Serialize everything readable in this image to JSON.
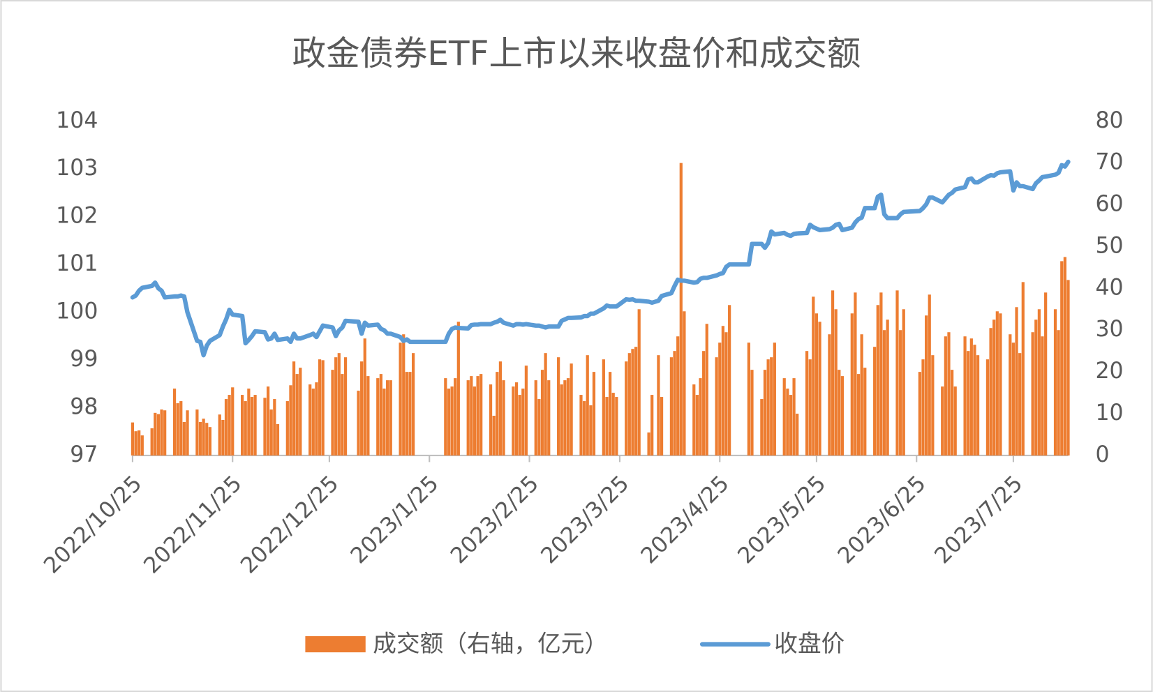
{
  "chart_data": {
    "type": "bar-line",
    "title": "政金债券ETF上市以来收盘价和成交额",
    "x": [
      "2022/10/25",
      "2022/10/26",
      "2022/10/27",
      "2022/10/28",
      "2022/10/31",
      "2022/11/1",
      "2022/11/2",
      "2022/11/3",
      "2022/11/4",
      "2022/11/7",
      "2022/11/8",
      "2022/11/9",
      "2022/11/10",
      "2022/11/11",
      "2022/11/14",
      "2022/11/15",
      "2022/11/16",
      "2022/11/17",
      "2022/11/18",
      "2022/11/21",
      "2022/11/22",
      "2022/11/23",
      "2022/11/24",
      "2022/11/25",
      "2022/11/28",
      "2022/11/29",
      "2022/11/30",
      "2022/12/1",
      "2022/12/2",
      "2022/12/5",
      "2022/12/6",
      "2022/12/7",
      "2022/12/8",
      "2022/12/9",
      "2022/12/12",
      "2022/12/13",
      "2022/12/14",
      "2022/12/15",
      "2022/12/16",
      "2022/12/19",
      "2022/12/20",
      "2022/12/21",
      "2022/12/22",
      "2022/12/23",
      "2022/12/26",
      "2022/12/27",
      "2022/12/28",
      "2022/12/29",
      "2022/12/30",
      "2023/1/3",
      "2023/1/4",
      "2023/1/5",
      "2023/1/6",
      "2023/1/9",
      "2023/1/10",
      "2023/1/11",
      "2023/1/12",
      "2023/1/13",
      "2023/1/16",
      "2023/1/17",
      "2023/1/18",
      "2023/1/19",
      "2023/1/20",
      "2023/1/30",
      "2023/1/31",
      "2023/2/1",
      "2023/2/2",
      "2023/2/3",
      "2023/2/6",
      "2023/2/7",
      "2023/2/8",
      "2023/2/9",
      "2023/2/10",
      "2023/2/13",
      "2023/2/14",
      "2023/2/15",
      "2023/2/16",
      "2023/2/17",
      "2023/2/20",
      "2023/2/21",
      "2023/2/22",
      "2023/2/23",
      "2023/2/24",
      "2023/2/27",
      "2023/2/28",
      "2023/3/1",
      "2023/3/2",
      "2023/3/3",
      "2023/3/6",
      "2023/3/7",
      "2023/3/8",
      "2023/3/9",
      "2023/3/10",
      "2023/3/13",
      "2023/3/14",
      "2023/3/15",
      "2023/3/16",
      "2023/3/17",
      "2023/3/20",
      "2023/3/21",
      "2023/3/22",
      "2023/3/23",
      "2023/3/24",
      "2023/3/27",
      "2023/3/28",
      "2023/3/29",
      "2023/3/30",
      "2023/3/31",
      "2023/4/3",
      "2023/4/4",
      "2023/4/6",
      "2023/4/7",
      "2023/4/10",
      "2023/4/11",
      "2023/4/12",
      "2023/4/13",
      "2023/4/14",
      "2023/4/17",
      "2023/4/18",
      "2023/4/19",
      "2023/4/20",
      "2023/4/21",
      "2023/4/24",
      "2023/4/25",
      "2023/4/26",
      "2023/4/27",
      "2023/4/28",
      "2023/5/4",
      "2023/5/5",
      "2023/5/8",
      "2023/5/9",
      "2023/5/10",
      "2023/5/11",
      "2023/5/12",
      "2023/5/15",
      "2023/5/16",
      "2023/5/17",
      "2023/5/18",
      "2023/5/19",
      "2023/5/22",
      "2023/5/23",
      "2023/5/24",
      "2023/5/25",
      "2023/5/26",
      "2023/5/29",
      "2023/5/30",
      "2023/5/31",
      "2023/6/1",
      "2023/6/2",
      "2023/6/5",
      "2023/6/6",
      "2023/6/7",
      "2023/6/8",
      "2023/6/9",
      "2023/6/12",
      "2023/6/13",
      "2023/6/14",
      "2023/6/15",
      "2023/6/16",
      "2023/6/19",
      "2023/6/20",
      "2023/6/21",
      "2023/6/26",
      "2023/6/27",
      "2023/6/28",
      "2023/6/29",
      "2023/6/30",
      "2023/7/3",
      "2023/7/4",
      "2023/7/5",
      "2023/7/6",
      "2023/7/7",
      "2023/7/10",
      "2023/7/11",
      "2023/7/12",
      "2023/7/13",
      "2023/7/14",
      "2023/7/17",
      "2023/7/18",
      "2023/7/19",
      "2023/7/20",
      "2023/7/21",
      "2023/7/24",
      "2023/7/25",
      "2023/7/26",
      "2023/7/27",
      "2023/7/28",
      "2023/7/31",
      "2023/8/1",
      "2023/8/2",
      "2023/8/3",
      "2023/8/4",
      "2023/8/7",
      "2023/8/8",
      "2023/8/9",
      "2023/8/10",
      "2023/8/11"
    ],
    "series": [
      {
        "name": "成交额（右轴，亿元）",
        "type": "bar",
        "axis": "y2",
        "color": "#ED7D31",
        "values": [
          7.9,
          5.8,
          6.0,
          4.8,
          6.5,
          10.2,
          9.9,
          11.0,
          10.8,
          16.0,
          12.5,
          13.0,
          8.0,
          10.8,
          11.0,
          8.0,
          8.8,
          7.8,
          6.8,
          9.8,
          8.5,
          13.5,
          14.5,
          16.3,
          14.5,
          13.0,
          16.0,
          14.0,
          14.5,
          13.8,
          16.5,
          11.0,
          13.5,
          7.5,
          13.0,
          16.8,
          22.5,
          19.5,
          21.0,
          17.0,
          16.0,
          17.5,
          23.0,
          22.8,
          20.5,
          23.5,
          24.5,
          19.5,
          23.5,
          15.5,
          22.5,
          28.0,
          19.0,
          18.5,
          19.5,
          16.0,
          18.0,
          18.0,
          27.0,
          29.0,
          20.0,
          20.0,
          24.5,
          18.5,
          16.0,
          16.5,
          18.5,
          32.0,
          18.0,
          19.0,
          16.5,
          19.0,
          19.5,
          17.0,
          9.5,
          20.0,
          22.5,
          18.0,
          16.5,
          17.5,
          14.5,
          16.0,
          21.5,
          18.0,
          13.5,
          20.5,
          24.5,
          18.0,
          23.5,
          17.0,
          18.0,
          18.5,
          22.0,
          14.5,
          13.0,
          24.0,
          12.0,
          20.0,
          23.0,
          14.0,
          20.0,
          15.0,
          14.0,
          22.5,
          24.5,
          25.5,
          26.0,
          35.0,
          5.5,
          14.5,
          24.0,
          14.0,
          23.5,
          25.0,
          28.5,
          70.0,
          34.5,
          17.0,
          14.5,
          18.5,
          25.0,
          31.5,
          23.5,
          27.0,
          31.0,
          29.5,
          36.0,
          27.0,
          20.5,
          13.5,
          20.5,
          23.0,
          23.5,
          27.0,
          18.5,
          16.0,
          14.5,
          18.5,
          10.0,
          25.0,
          23.0,
          38.0,
          34.0,
          32.0,
          29.0,
          39.5,
          35.0,
          20.5,
          19.0,
          34.0,
          39.0,
          19.5,
          29.0,
          21.0,
          26.0,
          36.0,
          39.0,
          30.0,
          32.5,
          39.5,
          30.0,
          35.0,
          20.0,
          23.0,
          33.5,
          38.5,
          24.0,
          16.5,
          28.5,
          29.5,
          20.5,
          16.5,
          28.5,
          25.0,
          28.0,
          26.5,
          24.0,
          23.0,
          30.5,
          32.5,
          34.5,
          34.0,
          29.0,
          27.0,
          35.5,
          24.5,
          41.5,
          29.5,
          32.5,
          35.0,
          28.5,
          39.0,
          35.0,
          30.0,
          46.5,
          47.5,
          42.0
        ]
      },
      {
        "name": "收盘价",
        "type": "line",
        "color": "#5B9BD5",
        "values": [
          100.31,
          100.35,
          100.45,
          100.51,
          100.55,
          100.62,
          100.5,
          100.45,
          100.31,
          100.33,
          100.33,
          100.35,
          100.33,
          100.0,
          99.4,
          99.38,
          99.1,
          99.3,
          99.4,
          99.52,
          99.7,
          99.85,
          100.05,
          99.95,
          99.92,
          99.35,
          99.42,
          99.5,
          99.6,
          99.58,
          99.43,
          99.45,
          99.55,
          99.42,
          99.45,
          99.38,
          99.55,
          99.45,
          99.45,
          99.52,
          99.55,
          99.48,
          99.6,
          99.72,
          99.68,
          99.5,
          99.62,
          99.68,
          99.82,
          99.8,
          99.55,
          99.78,
          99.72,
          99.74,
          99.65,
          99.62,
          99.55,
          99.55,
          99.48,
          99.4,
          99.43,
          99.38,
          99.38,
          99.38,
          99.55,
          99.65,
          99.68,
          99.67,
          99.66,
          99.73,
          99.74,
          99.74,
          99.75,
          99.75,
          99.78,
          99.8,
          99.84,
          99.78,
          99.72,
          99.75,
          99.75,
          99.74,
          99.75,
          99.72,
          99.72,
          99.7,
          99.68,
          99.7,
          99.7,
          99.82,
          99.85,
          99.88,
          99.88,
          99.89,
          99.92,
          99.92,
          99.97,
          99.97,
          100.08,
          100.14,
          100.12,
          100.12,
          100.12,
          100.27,
          100.26,
          100.27,
          100.24,
          100.24,
          100.22,
          100.2,
          100.24,
          100.34,
          100.4,
          100.55,
          100.68,
          100.66,
          100.66,
          100.62,
          100.63,
          100.7,
          100.72,
          100.72,
          100.77,
          100.8,
          100.82,
          100.95,
          101.0,
          101.0,
          101.43,
          101.43,
          101.35,
          101.45,
          101.69,
          101.63,
          101.66,
          101.62,
          101.6,
          101.64,
          101.65,
          101.66,
          101.83,
          101.78,
          101.75,
          101.72,
          101.74,
          101.77,
          101.83,
          101.85,
          101.72,
          101.77,
          101.88,
          101.95,
          101.98,
          102.18,
          102.18,
          102.42,
          102.46,
          102.05,
          101.97,
          101.97,
          102.05,
          102.1,
          102.12,
          102.18,
          102.26,
          102.4,
          102.4,
          102.3,
          102.38,
          102.46,
          102.5,
          102.57,
          102.62,
          102.78,
          102.8,
          102.72,
          102.72,
          102.84,
          102.87,
          102.86,
          102.91,
          102.93,
          102.95,
          102.55,
          102.72,
          102.64,
          102.64,
          102.58,
          102.7,
          102.76,
          102.83,
          102.84,
          102.88,
          102.92,
          103.08,
          103.05,
          103.15
        ]
      }
    ],
    "xlim": [
      "2022/10/25",
      "2023/8/11"
    ],
    "xticks": [
      "2022/10/25",
      "2022/11/25",
      "2022/12/25",
      "2023/1/25",
      "2023/2/25",
      "2023/3/25",
      "2023/4/25",
      "2023/5/25",
      "2023/6/25",
      "2023/7/25"
    ],
    "ylim": [
      97,
      104
    ],
    "yticks": [
      97,
      98,
      99,
      100,
      101,
      102,
      103,
      104
    ],
    "y2lim": [
      0,
      80
    ],
    "y2ticks": [
      0,
      10,
      20,
      30,
      40,
      50,
      60,
      70,
      80
    ],
    "grid": false,
    "legend": "bottom"
  }
}
